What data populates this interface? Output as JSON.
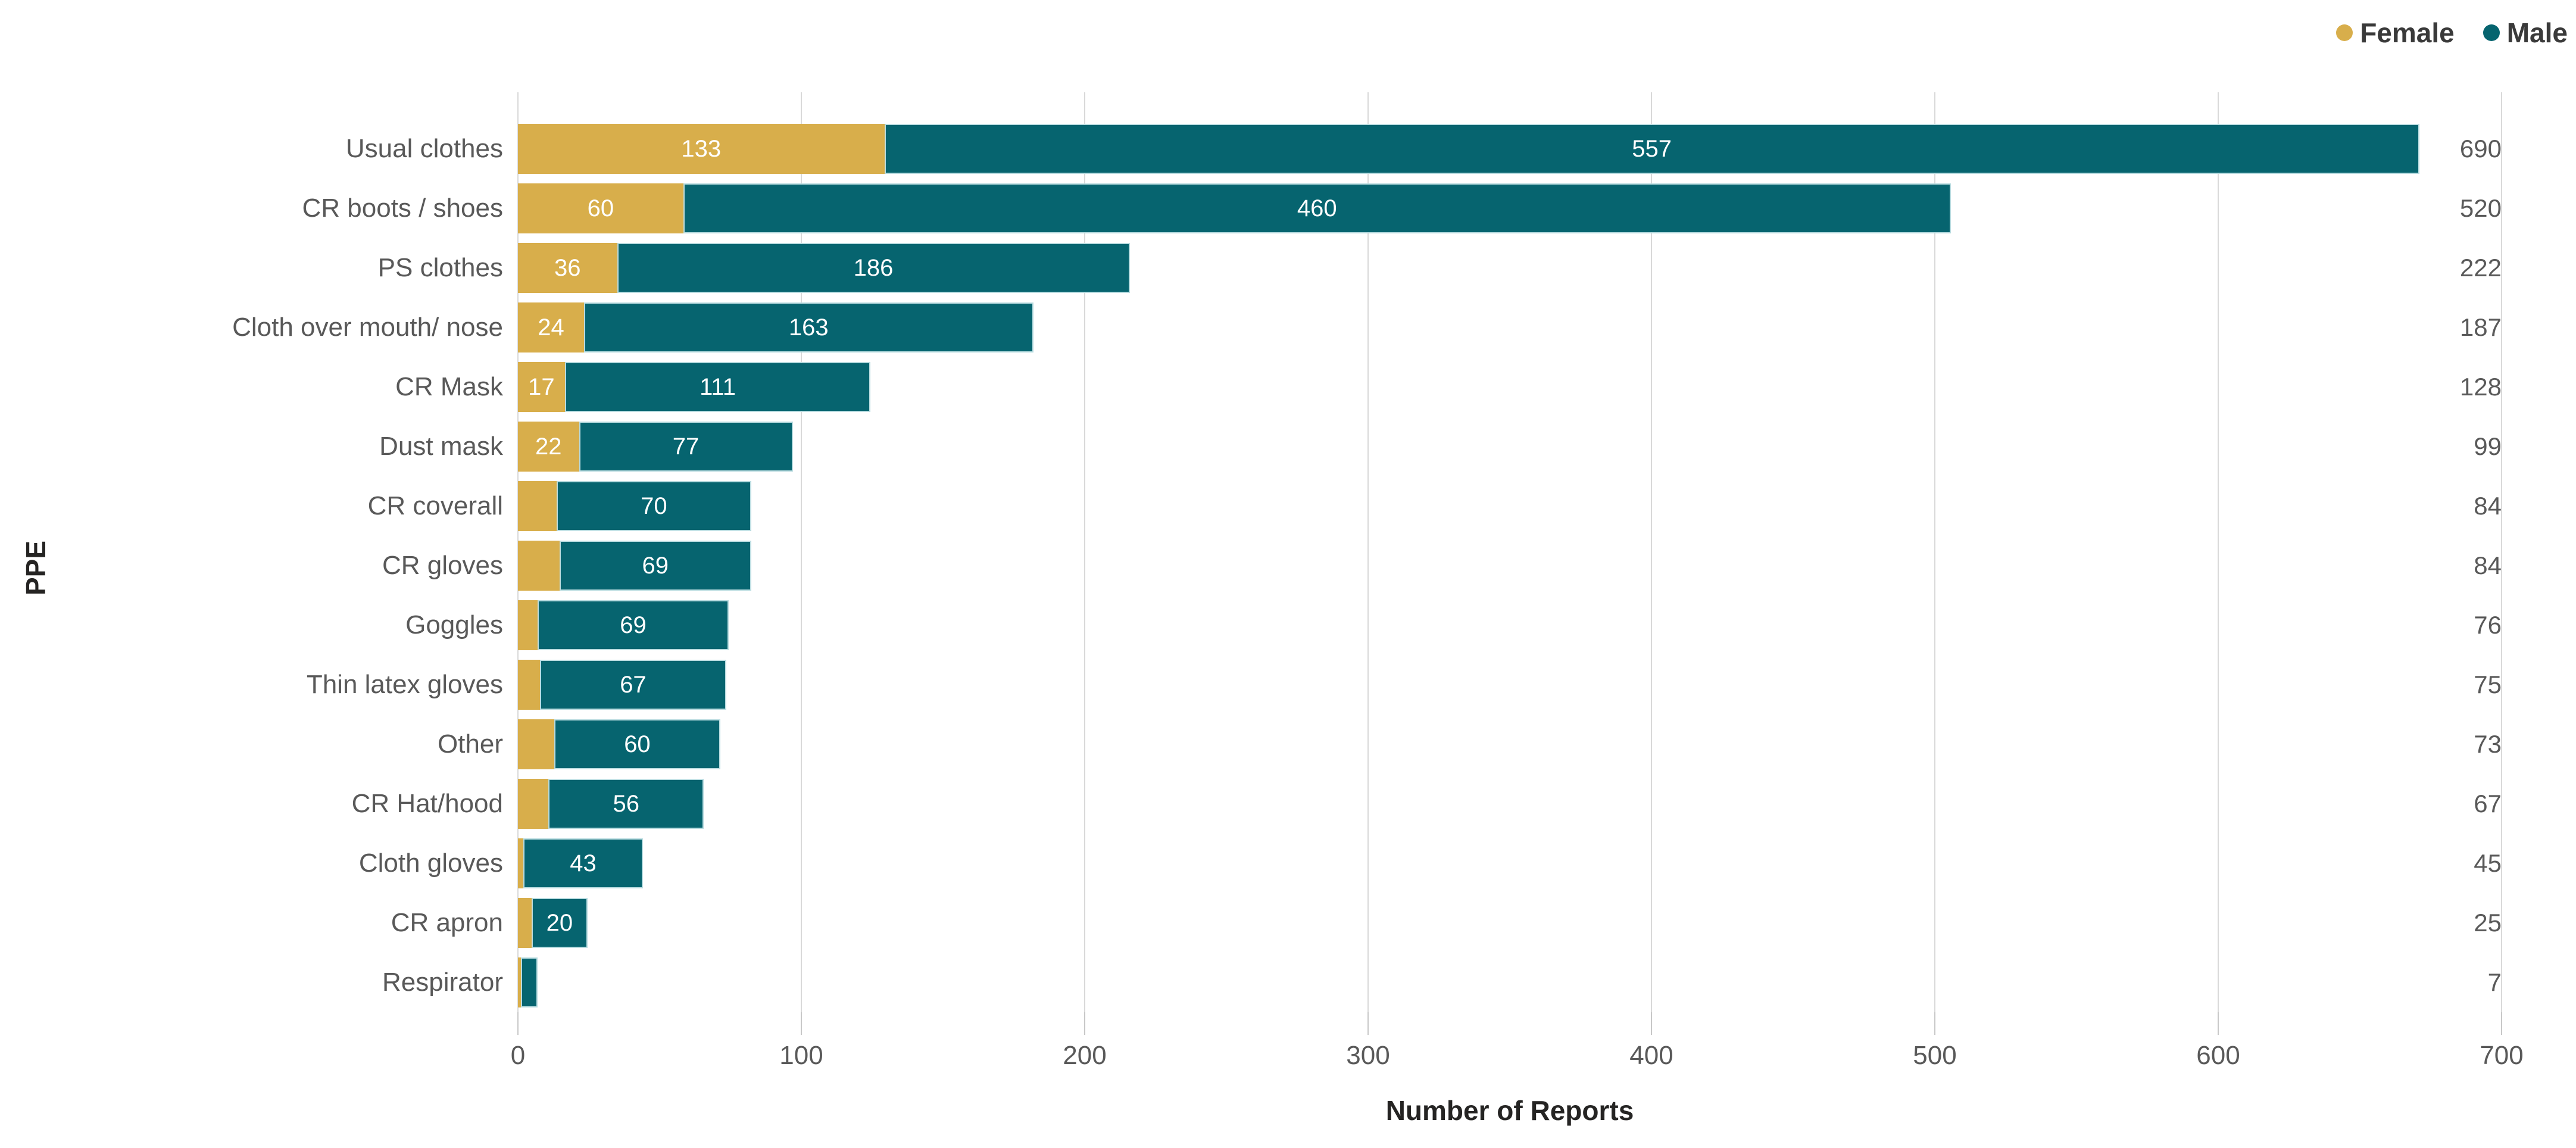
{
  "legend": {
    "position": "top-right",
    "items": [
      {
        "label": "Female",
        "color": "#D8AE4B"
      },
      {
        "label": "Male",
        "color": "#06646F"
      }
    ]
  },
  "styles": {
    "female_color": "#D8AE4B",
    "male_color": "#06646F",
    "male_border_color": "#B9DCE0",
    "grid_color": "#D9D9D9",
    "muted_text_color": "#595959",
    "dark_text_color": "#252423",
    "bar_label_color": "#FFFFFF"
  },
  "chart_data": {
    "type": "bar",
    "orientation": "horizontal",
    "stacked": true,
    "title": "",
    "xlabel": "Number of Reports",
    "ylabel": "PPE",
    "xlim": [
      0,
      700
    ],
    "xticks": [
      0,
      100,
      200,
      300,
      400,
      500,
      600,
      700
    ],
    "grid": "vertical",
    "legend_position": "top-right",
    "categories": [
      "Usual clothes",
      "CR boots / shoes",
      "PS clothes",
      "Cloth over mouth/ nose",
      "CR Mask",
      "Dust mask",
      "CR coverall",
      "CR gloves",
      "Goggles",
      "Thin latex gloves",
      "Other",
      "CR Hat/hood",
      "Cloth gloves",
      "CR apron",
      "Respirator"
    ],
    "series": [
      {
        "name": "Female",
        "color": "#D8AE4B",
        "values": [
          133,
          60,
          36,
          24,
          17,
          22,
          14,
          15,
          7,
          8,
          13,
          11,
          2,
          5,
          1
        ],
        "bar_labels": [
          "133",
          "60",
          "36",
          "24",
          "17",
          "22",
          "",
          "",
          "",
          "",
          "",
          "",
          "",
          "",
          ""
        ]
      },
      {
        "name": "Male",
        "color": "#06646F",
        "values": [
          557,
          460,
          186,
          163,
          111,
          77,
          70,
          69,
          69,
          67,
          60,
          56,
          43,
          20,
          6
        ],
        "bar_labels": [
          "557",
          "460",
          "186",
          "163",
          "111",
          "77",
          "70",
          "69",
          "69",
          "67",
          "60",
          "56",
          "43",
          "20",
          ""
        ]
      }
    ],
    "totals": [
      690,
      520,
      222,
      187,
      128,
      99,
      84,
      84,
      76,
      75,
      73,
      67,
      45,
      25,
      7
    ]
  }
}
